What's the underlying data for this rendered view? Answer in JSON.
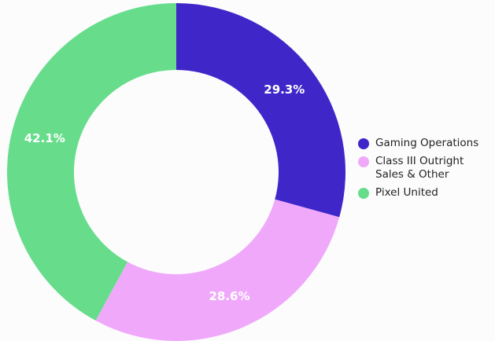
{
  "chart_data": {
    "type": "donut",
    "categories": [
      "Gaming Operations",
      "Class III Outright Sales & Other",
      "Pixel United"
    ],
    "values": [
      29.3,
      28.6,
      42.1
    ],
    "value_labels": [
      "29.3%",
      "28.6%",
      "42.1%"
    ],
    "colors": [
      "#3f26c9",
      "#f0a9fa",
      "#67dd8b"
    ],
    "legend": "right"
  }
}
